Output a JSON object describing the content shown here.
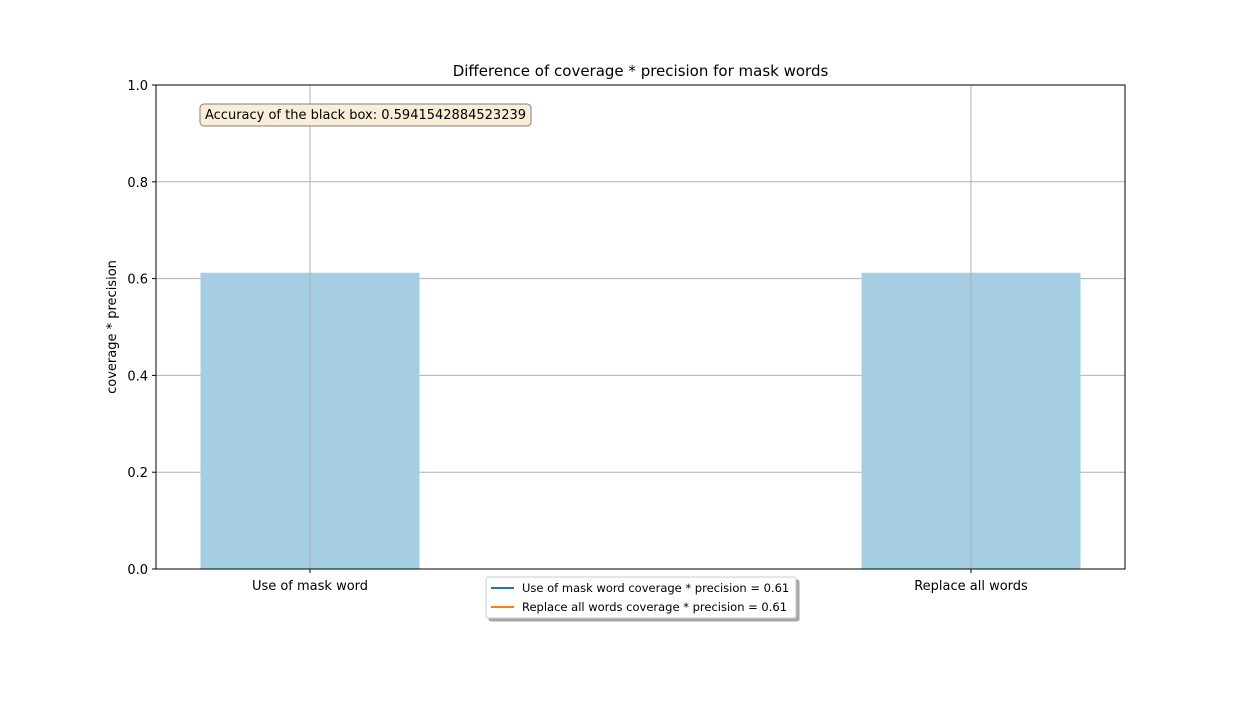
{
  "chart_data": {
    "type": "bar",
    "title": "Difference of coverage * precision for mask words",
    "xlabel": "",
    "ylabel": "coverage * precision",
    "categories": [
      "Use of mask word",
      "Replace all words"
    ],
    "values": [
      0.612,
      0.612
    ],
    "ylim": [
      0,
      1.0
    ],
    "yticks": [
      "0.0",
      "0.2",
      "0.4",
      "0.6",
      "0.8",
      "1.0"
    ],
    "grid": true,
    "bar_color": "#a6cee3",
    "annotation": "Accuracy of the black box: 0.5941542884523239",
    "annotation_bg": "#fbeed8",
    "legend_placement": "lower-center",
    "legend": [
      {
        "label": "Use of mask word coverage * precision = 0.61",
        "color": "#1f77b4"
      },
      {
        "label": "Replace all words coverage * precision = 0.61",
        "color": "#ff7f0e"
      }
    ]
  }
}
